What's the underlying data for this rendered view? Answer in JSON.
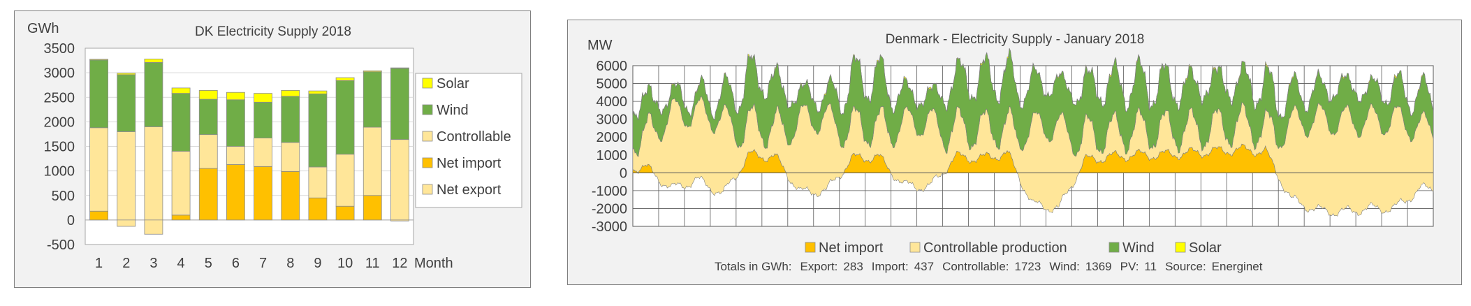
{
  "chart_data": [
    {
      "type": "bar",
      "stacked": true,
      "title": "DK Electricity Supply 2018",
      "ylabel": "GWh",
      "xlabel": "Month",
      "ylim": [
        -500,
        3500
      ],
      "yticks": [
        -500,
        0,
        500,
        1000,
        1500,
        2000,
        2500,
        3000,
        3500
      ],
      "grid": "horizontal",
      "legend_placement": "right",
      "categories": [
        "1",
        "2",
        "3",
        "4",
        "5",
        "6",
        "7",
        "8",
        "9",
        "10",
        "11",
        "12"
      ],
      "series": [
        {
          "name": "Net import",
          "color": "#ffc000",
          "values": [
            180,
            0,
            0,
            100,
            1050,
            1130,
            1090,
            990,
            450,
            280,
            500,
            0
          ]
        },
        {
          "name": "Controllable",
          "color": "#ffe699",
          "values": [
            1700,
            1800,
            1900,
            1300,
            690,
            370,
            580,
            590,
            630,
            1060,
            1390,
            1640
          ]
        },
        {
          "name": "Wind",
          "color": "#70ad47",
          "values": [
            1380,
            1160,
            1310,
            1180,
            720,
            950,
            730,
            940,
            1490,
            1500,
            1130,
            1450
          ]
        },
        {
          "name": "Solar",
          "color": "#ffff00",
          "values": [
            15,
            30,
            70,
            110,
            180,
            150,
            180,
            120,
            60,
            60,
            20,
            10
          ]
        },
        {
          "name": "Net export",
          "color": "#ffe699",
          "values": [
            0,
            -130,
            -290,
            0,
            0,
            0,
            0,
            0,
            0,
            0,
            0,
            -20
          ]
        }
      ],
      "legend": [
        "Solar",
        "Wind",
        "Controllable",
        "Net import",
        "Net export"
      ]
    },
    {
      "type": "area",
      "stacked": true,
      "title": "Denmark - Electricity Supply - January 2018",
      "ylabel": "MW",
      "xlabel": "",
      "ylim": [
        -3000,
        6000
      ],
      "yticks": [
        -3000,
        -2000,
        -1000,
        0,
        1000,
        2000,
        3000,
        4000,
        5000,
        6000
      ],
      "grid": "both",
      "x_range_days": [
        1,
        31
      ],
      "legend_placement": "bottom",
      "legend": [
        "Net import",
        "Controllable production",
        "Wind",
        "Solar"
      ],
      "series": [
        {
          "name": "Net import",
          "color": "#ffc000"
        },
        {
          "name": "Controllable production",
          "color": "#ffe699"
        },
        {
          "name": "Wind",
          "color": "#70ad47"
        },
        {
          "name": "Solar",
          "color": "#ffff00"
        }
      ],
      "daily": {
        "net_flow": [
          300,
          -900,
          -400,
          -1200,
          1000,
          900,
          -1100,
          -1000,
          800,
          900,
          -700,
          -800,
          900,
          800,
          1100,
          -1800,
          -2000,
          700,
          900,
          1000,
          1000,
          1100,
          1200,
          1300,
          1200,
          -1500,
          -2100,
          -2200,
          -2000,
          -2000,
          -900
        ],
        "controllable": [
          1800,
          3300,
          3400,
          3000,
          1700,
          1600,
          3000,
          3100,
          1800,
          1700,
          2800,
          2900,
          1600,
          1600,
          1500,
          2600,
          2600,
          1400,
          1300,
          1400,
          1400,
          1300,
          1300,
          1400,
          1300,
          2800,
          3000,
          2900,
          2900,
          3000,
          2500
        ],
        "wind": [
          1900,
          1000,
          800,
          1300,
          2800,
          2600,
          1400,
          1200,
          2600,
          2800,
          1600,
          1400,
          2800,
          2800,
          2900,
          2400,
          2400,
          2800,
          2700,
          2600,
          2500,
          2400,
          2600,
          2300,
          2400,
          1600,
          1600,
          2000,
          1700,
          1700,
          1800
        ],
        "solar": [
          10,
          20,
          20,
          20,
          30,
          20,
          20,
          30,
          20,
          20,
          30,
          30,
          20,
          30,
          30,
          20,
          20,
          30,
          30,
          30,
          20,
          30,
          30,
          30,
          40,
          30,
          30,
          30,
          30,
          40,
          30
        ]
      },
      "footer": {
        "label": "Totals in GWh:",
        "items": [
          {
            "label": "Export:",
            "value": "283"
          },
          {
            "label": "Import:",
            "value": "437"
          },
          {
            "label": "Controllable:",
            "value": "1723"
          },
          {
            "label": "Wind:",
            "value": "1369"
          },
          {
            "label": "PV:",
            "value": "11"
          },
          {
            "label": "Source:",
            "value": "Energinet"
          }
        ]
      }
    }
  ]
}
